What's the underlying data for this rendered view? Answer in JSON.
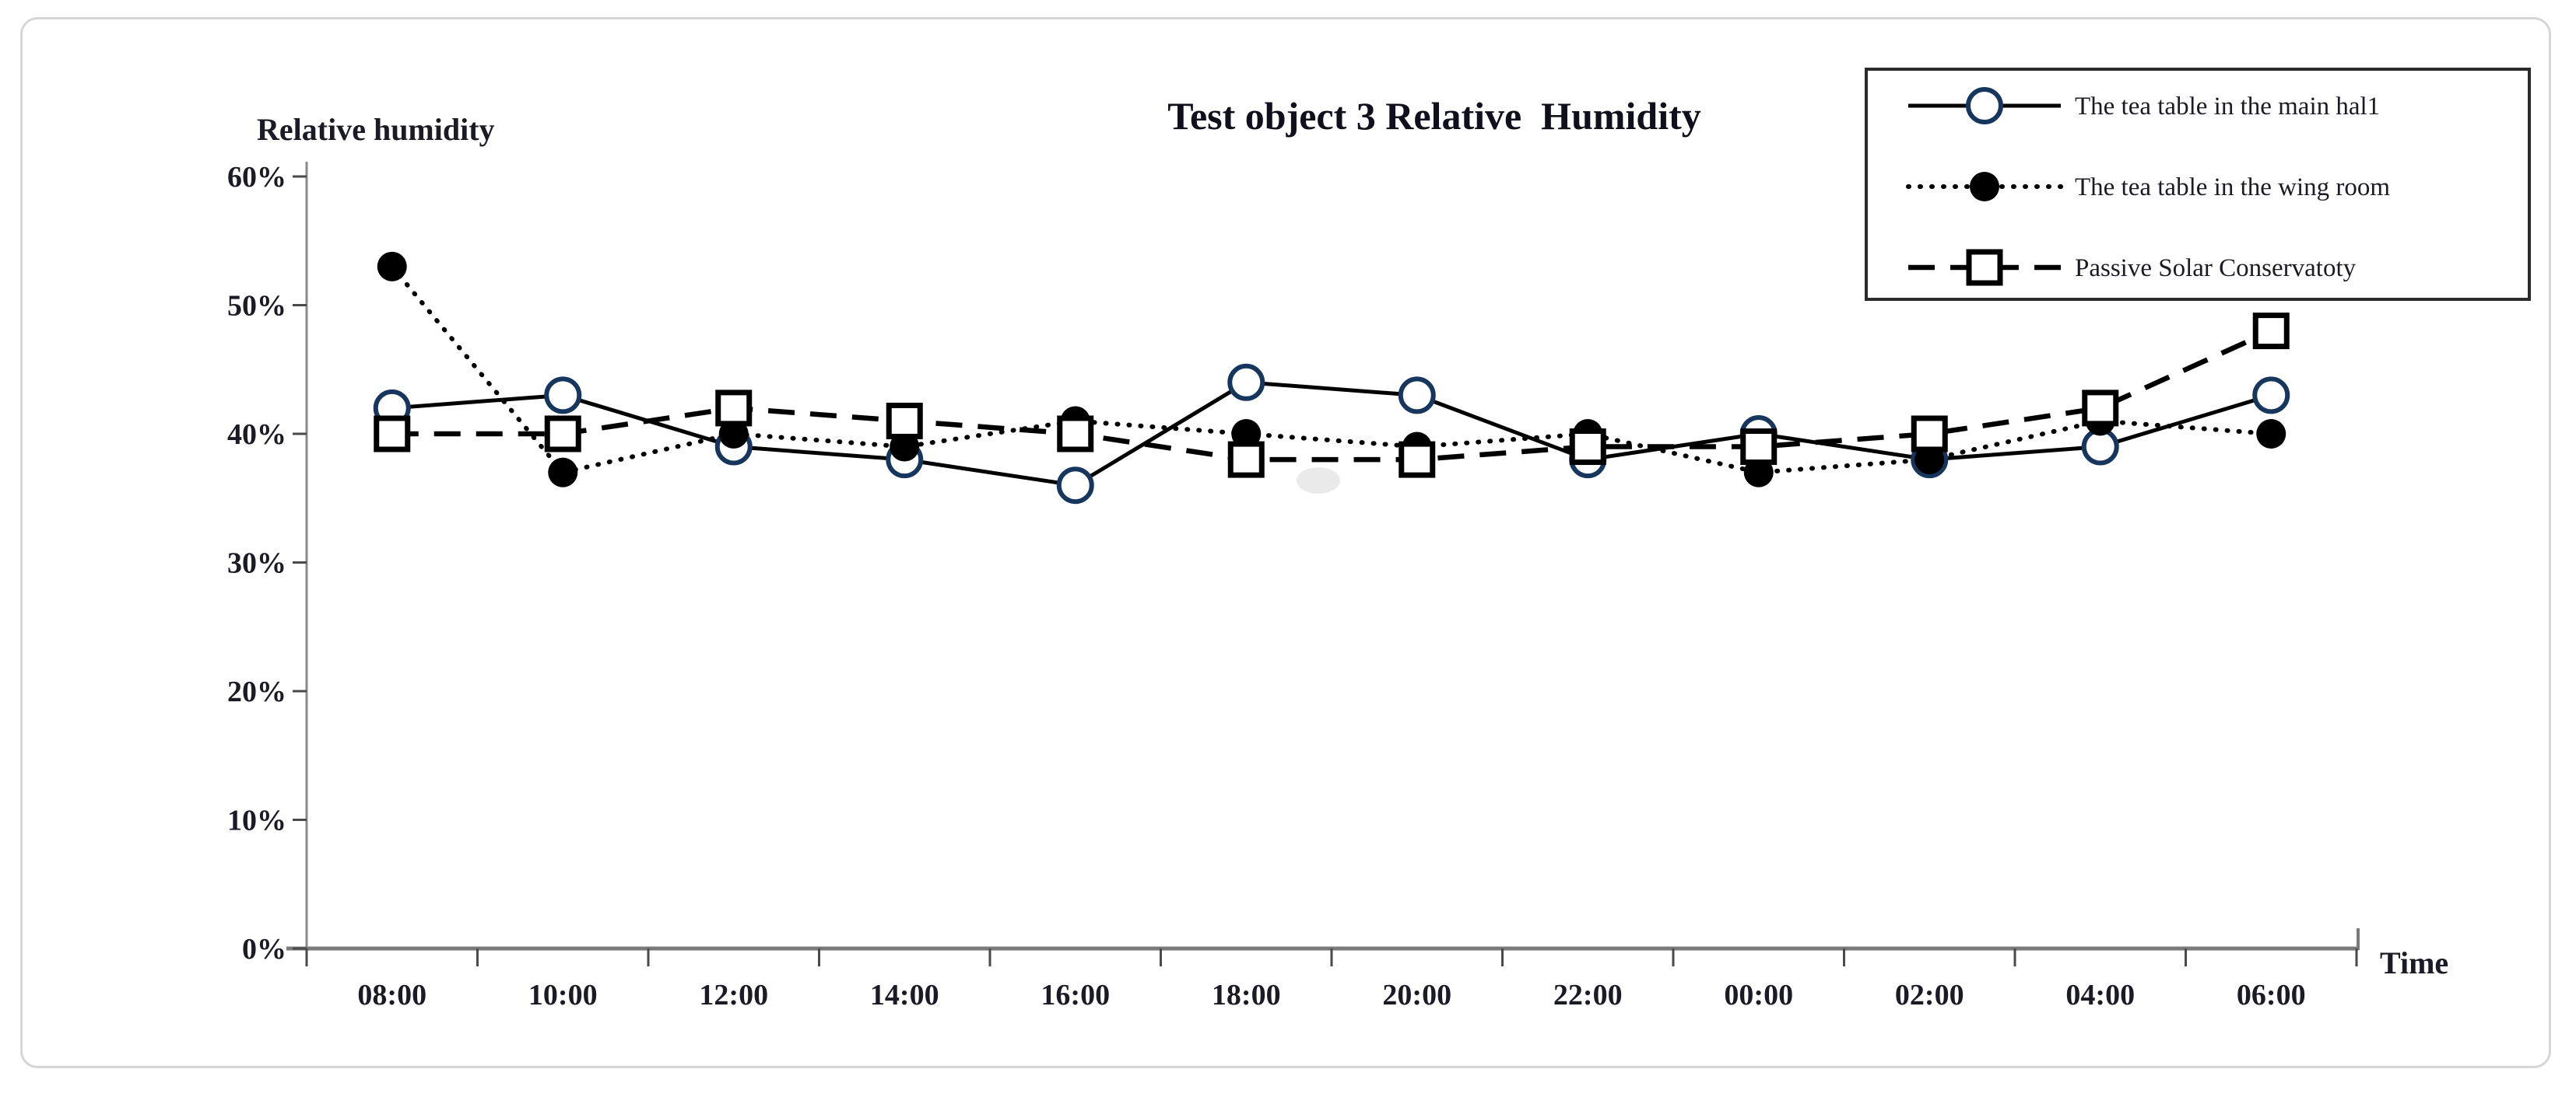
{
  "page": {
    "background": "#ffffff",
    "panel_border_color": "#d6d6d6",
    "axis_color": "#8a8a8a",
    "baseline_color": "#7a7a7a",
    "tick_color": "#4a4a4a",
    "text_color": "#1b1b26",
    "smudge_color": "#d9d9d9"
  },
  "chart_data": {
    "type": "line",
    "title": "Test object 3 Relative  Humidity",
    "ylabel": "Relative humidity",
    "xlabel": "Time",
    "x_categories": [
      "08:00",
      "10:00",
      "12:00",
      "14:00",
      "16:00",
      "18:00",
      "20:00",
      "22:00",
      "00:00",
      "02:00",
      "04:00",
      "06:00"
    ],
    "y_ticks": [
      {
        "label": "0%",
        "value": 0
      },
      {
        "label": "10%",
        "value": 10
      },
      {
        "label": "20%",
        "value": 20
      },
      {
        "label": "30%",
        "value": 30
      },
      {
        "label": "40%",
        "value": 40
      },
      {
        "label": "50%",
        "value": 50
      },
      {
        "label": "60%",
        "value": 60
      }
    ],
    "ylim": [
      0,
      60
    ],
    "grid": false,
    "legend": {
      "position": "top-right",
      "border": true
    },
    "series": [
      {
        "name": "The tea table in the main hal1",
        "line_style": "solid",
        "marker": "open-circle",
        "line_color": "#000000",
        "marker_color": "#17365d",
        "values": [
          42,
          43,
          39,
          38,
          36,
          44,
          43,
          38,
          40,
          38,
          39,
          43
        ]
      },
      {
        "name": "The tea table in the wing room",
        "line_style": "dotted",
        "marker": "filled-circle",
        "line_color": "#000000",
        "marker_color": "#000000",
        "values": [
          53,
          37,
          40,
          39,
          41,
          40,
          39,
          40,
          37,
          38,
          41,
          40
        ]
      },
      {
        "name": "Passive Solar Conservatoty",
        "line_style": "dashed",
        "marker": "open-square",
        "line_color": "#000000",
        "marker_color": "#000000",
        "values": [
          40,
          40,
          42,
          41,
          40,
          38,
          38,
          39,
          39,
          40,
          42,
          48
        ]
      }
    ]
  }
}
